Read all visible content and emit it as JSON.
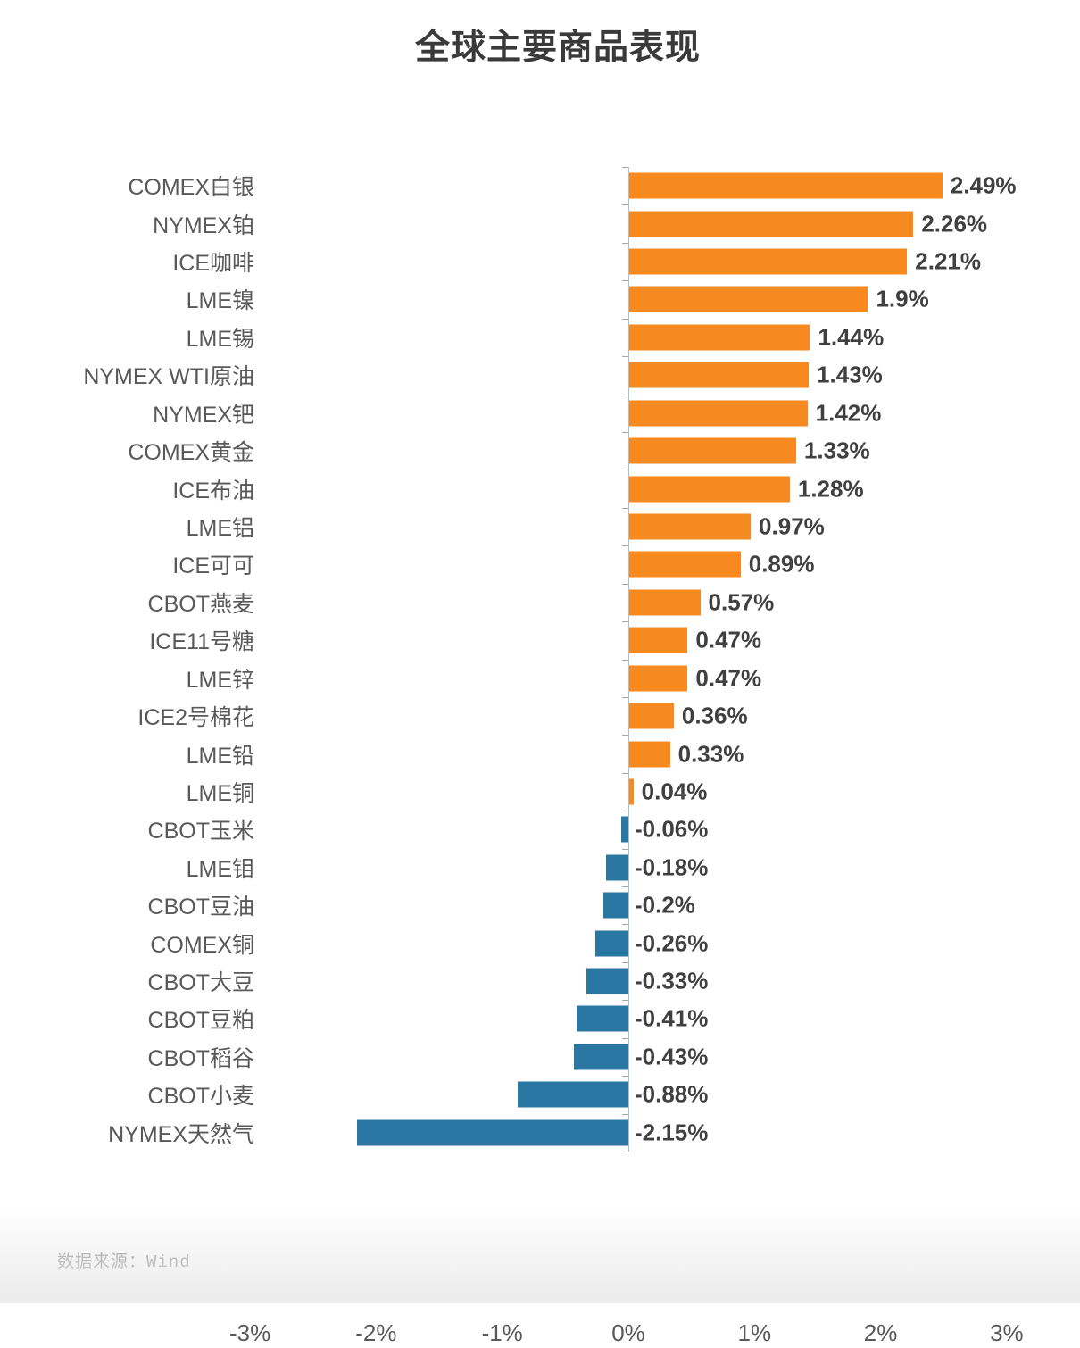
{
  "title": "全球主要商品表现",
  "source": "数据来源：Wind",
  "colors": {
    "positive_bar": "#f6891f",
    "negative_bar": "#2b77a3",
    "value_label": "#404040",
    "category_label": "#595959",
    "axis": "#b0bec7"
  },
  "chart_data": {
    "type": "bar",
    "orientation": "horizontal",
    "title": "全球主要商品表现",
    "categories": [
      "COMEX白银",
      "NYMEX铂",
      "ICE咖啡",
      "LME镍",
      "LME锡",
      "NYMEX WTI原油",
      "NYMEX钯",
      "COMEX黄金",
      "ICE布油",
      "LME铝",
      "ICE可可",
      "CBOT燕麦",
      "ICE11号糖",
      "LME锌",
      "ICE2号棉花",
      "LME铅",
      "LME铜",
      "CBOT玉米",
      "LME钼",
      "CBOT豆油",
      "COMEX铜",
      "CBOT大豆",
      "CBOT豆粕",
      "CBOT稻谷",
      "CBOT小麦",
      "NYMEX天然气"
    ],
    "values": [
      2.49,
      2.26,
      2.21,
      1.9,
      1.44,
      1.43,
      1.42,
      1.33,
      1.28,
      0.97,
      0.89,
      0.57,
      0.47,
      0.47,
      0.36,
      0.33,
      0.04,
      -0.06,
      -0.18,
      -0.2,
      -0.26,
      -0.33,
      -0.41,
      -0.43,
      -0.88,
      -2.15
    ],
    "value_labels": [
      "2.49%",
      "2.26%",
      "2.21%",
      "1.9%",
      "1.44%",
      "1.43%",
      "1.42%",
      "1.33%",
      "1.28%",
      "0.97%",
      "0.89%",
      "0.57%",
      "0.47%",
      "0.47%",
      "0.36%",
      "0.33%",
      "0.04%",
      "-0.06%",
      "-0.18%",
      "-0.2%",
      "-0.26%",
      "-0.33%",
      "-0.41%",
      "-0.43%",
      "-0.88%",
      "-2.15%"
    ],
    "x_ticks": [
      "-3%",
      "-2%",
      "-1%",
      "0%",
      "1%",
      "2%",
      "3%"
    ],
    "x_tick_values": [
      -3,
      -2,
      -1,
      0,
      1,
      2,
      3
    ],
    "xlim": [
      -3,
      3
    ],
    "grid": false,
    "legend": "none",
    "data_source": "Wind"
  }
}
